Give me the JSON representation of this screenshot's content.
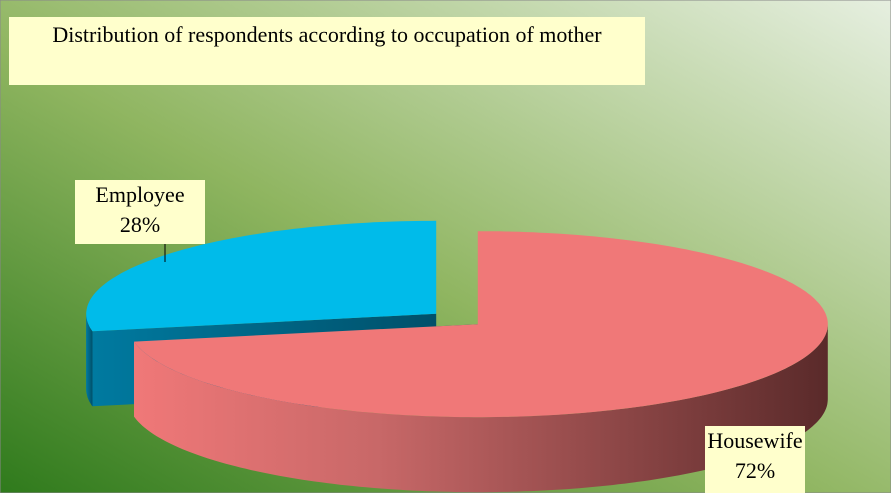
{
  "chart_data": {
    "type": "pie3d",
    "title": "Distribution of respondents according to occupation of mother",
    "categories": [
      "Housewife",
      "Employee"
    ],
    "values": [
      72,
      28
    ],
    "value_labels": [
      "72%",
      "28%"
    ],
    "colors": [
      "#f07878",
      "#00bbea"
    ]
  }
}
